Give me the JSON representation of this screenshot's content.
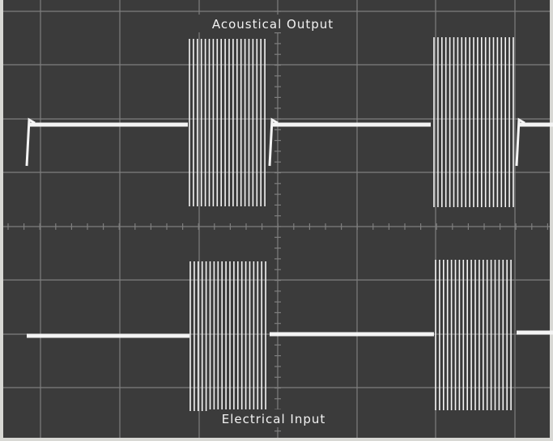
{
  "screen": {
    "top_label": "Acoustical Output",
    "bottom_label": "Electrical Input"
  }
}
